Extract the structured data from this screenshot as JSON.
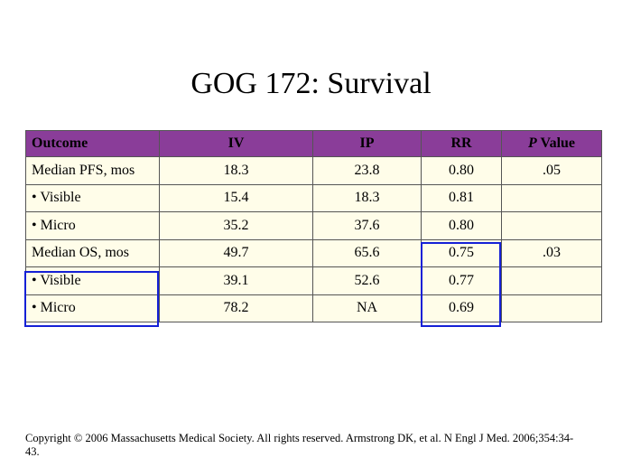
{
  "slide": {
    "title": "GOG 172: Survival"
  },
  "table": {
    "headers": {
      "outcome": "Outcome",
      "iv": "IV",
      "ip": "IP",
      "rr": "RR",
      "pvalue_italic": "P",
      "pvalue_rest": " Value"
    },
    "rows": [
      {
        "outcome": "Median PFS, mos",
        "iv": "18.3",
        "ip": "23.8",
        "rr": "0.80",
        "pvalue": ".05"
      },
      {
        "outcome": "• Visible",
        "iv": "15.4",
        "ip": "18.3",
        "rr": "0.81",
        "pvalue": ""
      },
      {
        "outcome": "• Micro",
        "iv": "35.2",
        "ip": "37.6",
        "rr": "0.80",
        "pvalue": ""
      },
      {
        "outcome": "Median OS, mos",
        "iv": "49.7",
        "ip": "65.6",
        "rr": "0.75",
        "pvalue": ".03"
      },
      {
        "outcome": "• Visible",
        "iv": "39.1",
        "ip": "52.6",
        "rr": "0.77",
        "pvalue": ""
      },
      {
        "outcome": "• Micro",
        "iv": "78.2",
        "ip": "NA",
        "rr": "0.69",
        "pvalue": ""
      }
    ]
  },
  "footer": {
    "copyright": "Copyright © 2006 Massachusetts Medical Society. All rights reserved. Armstrong DK, et al. N Engl J Med. 2006;354:34-43."
  },
  "colors": {
    "header_fill": "#8a3d99",
    "cell_fill": "#fffde9",
    "highlight_border": "#1520d6"
  }
}
